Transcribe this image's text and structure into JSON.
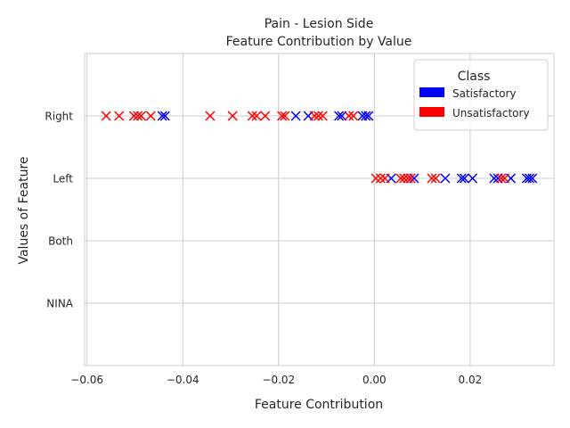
{
  "chart_data": {
    "type": "scatter",
    "title": "Pain - Lesion Side",
    "subtitle": "Feature Contribution by Value",
    "xlabel": "Feature Contribution",
    "ylabel": "Values of Feature",
    "xlim": [
      -0.0605,
      0.0375
    ],
    "x_ticks": [
      -0.06,
      -0.04,
      -0.02,
      0.0,
      0.02
    ],
    "x_tick_labels": [
      "−0.06",
      "−0.04",
      "−0.02",
      "0.00",
      "0.02"
    ],
    "categories": [
      "NINA",
      "Both",
      "Left",
      "Right"
    ],
    "grid": true,
    "legend_position": "top-right",
    "legend": {
      "title": "Class",
      "entries": [
        {
          "label": "Satisfactory",
          "color": "#0000ff"
        },
        {
          "label": "Unsatisfactory",
          "color": "#ff0000"
        }
      ]
    },
    "marker": "x",
    "series": [
      {
        "name": "Satisfactory",
        "color": "#0000ff",
        "points": [
          {
            "y": "Right",
            "x": -0.0443
          },
          {
            "y": "Right",
            "x": -0.0437
          },
          {
            "y": "Right",
            "x": -0.0164
          },
          {
            "y": "Right",
            "x": -0.0138
          },
          {
            "y": "Right",
            "x": -0.0074
          },
          {
            "y": "Right",
            "x": -0.0068
          },
          {
            "y": "Right",
            "x": -0.0025
          },
          {
            "y": "Right",
            "x": -0.0018
          },
          {
            "y": "Right",
            "x": -0.0012
          },
          {
            "y": "Left",
            "x": 0.0035
          },
          {
            "y": "Left",
            "x": 0.0083
          },
          {
            "y": "Left",
            "x": 0.0148
          },
          {
            "y": "Left",
            "x": 0.0182
          },
          {
            "y": "Left",
            "x": 0.0188
          },
          {
            "y": "Left",
            "x": 0.0205
          },
          {
            "y": "Left",
            "x": 0.025
          },
          {
            "y": "Left",
            "x": 0.0258
          },
          {
            "y": "Left",
            "x": 0.0285
          },
          {
            "y": "Left",
            "x": 0.0318
          },
          {
            "y": "Left",
            "x": 0.0324
          },
          {
            "y": "Left",
            "x": 0.033
          }
        ]
      },
      {
        "name": "Unsatisfactory",
        "color": "#ff0000",
        "points": [
          {
            "y": "Right",
            "x": -0.056
          },
          {
            "y": "Right",
            "x": -0.0533
          },
          {
            "y": "Right",
            "x": -0.0502
          },
          {
            "y": "Right",
            "x": -0.0494
          },
          {
            "y": "Right",
            "x": -0.0487
          },
          {
            "y": "Right",
            "x": -0.0467
          },
          {
            "y": "Right",
            "x": -0.0343
          },
          {
            "y": "Right",
            "x": -0.0296
          },
          {
            "y": "Right",
            "x": -0.0255
          },
          {
            "y": "Right",
            "x": -0.0246
          },
          {
            "y": "Right",
            "x": -0.0228
          },
          {
            "y": "Right",
            "x": -0.0193
          },
          {
            "y": "Right",
            "x": -0.0187
          },
          {
            "y": "Right",
            "x": -0.0125
          },
          {
            "y": "Right",
            "x": -0.0117
          },
          {
            "y": "Right",
            "x": -0.0108
          },
          {
            "y": "Right",
            "x": -0.0053
          },
          {
            "y": "Right",
            "x": -0.0044
          },
          {
            "y": "Left",
            "x": 0.0003
          },
          {
            "y": "Left",
            "x": 0.0013
          },
          {
            "y": "Left",
            "x": 0.0022
          },
          {
            "y": "Left",
            "x": 0.0055
          },
          {
            "y": "Left",
            "x": 0.0062
          },
          {
            "y": "Left",
            "x": 0.007
          },
          {
            "y": "Left",
            "x": 0.0076
          },
          {
            "y": "Left",
            "x": 0.012
          },
          {
            "y": "Left",
            "x": 0.0128
          },
          {
            "y": "Left",
            "x": 0.0265
          },
          {
            "y": "Left",
            "x": 0.0272
          }
        ]
      }
    ]
  }
}
